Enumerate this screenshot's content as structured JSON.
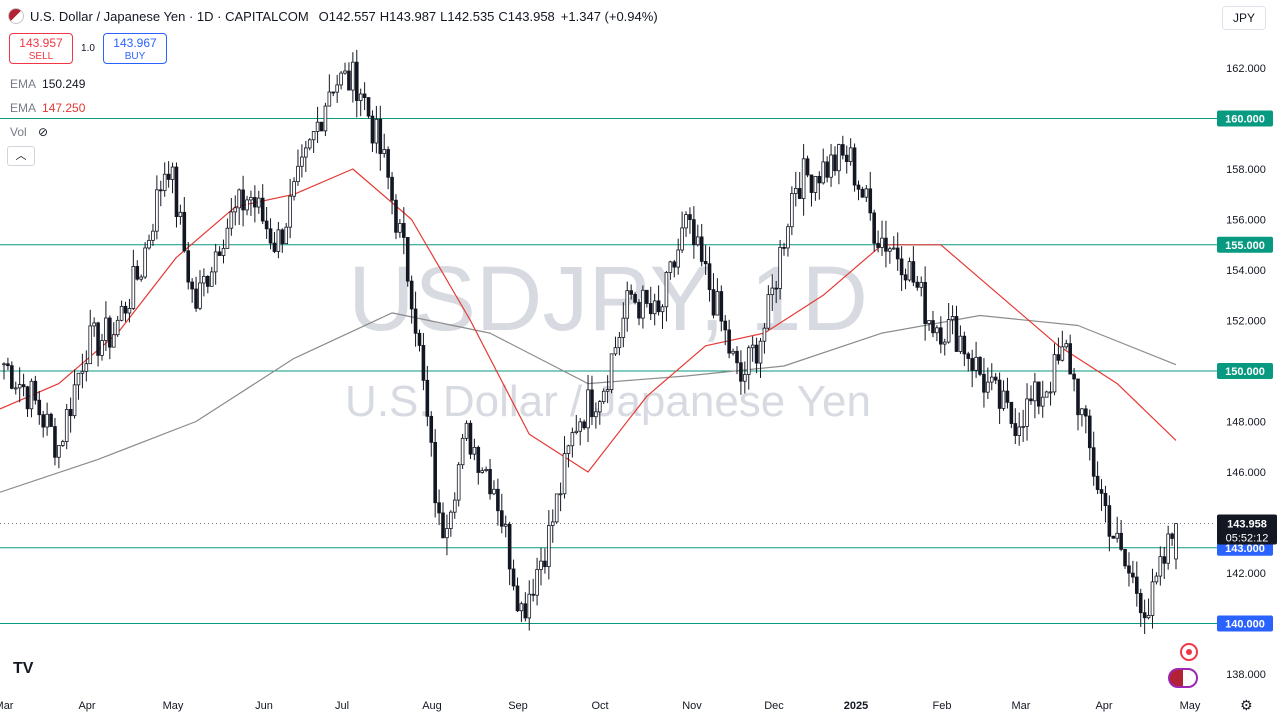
{
  "header": {
    "symbol": "U.S. Dollar / Japanese Yen · 1D · CAPITALCOM",
    "open_label": "O",
    "open": "142.557",
    "high_label": "H",
    "high": "143.987",
    "low_label": "L",
    "low": "142.535",
    "close_label": "C",
    "close": "143.958",
    "change": "+1.347 (+0.94%)"
  },
  "trade": {
    "sell_price": "143.957",
    "sell_label": "SELL",
    "spread": "1.0",
    "buy_price": "143.967",
    "buy_label": "BUY"
  },
  "indicators": [
    {
      "name": "EMA",
      "value": "150.249",
      "color": "#787b86"
    },
    {
      "name": "EMA",
      "value": "147.250",
      "color": "#e53935"
    },
    {
      "name": "Vol",
      "value": ""
    }
  ],
  "currency_button": "JPY",
  "watermark": {
    "line1": "USDJPY, 1D",
    "line2": "U.S. Dollar / Japanese Yen"
  },
  "colors": {
    "up": "#131722",
    "down": "#131722",
    "ema_fast": "#e53935",
    "ema_slow": "#8c8c8c",
    "hline": "#089981",
    "price_tag": "#2962ff",
    "last_tag": "#131722"
  },
  "icons": [
    "us-flag-icon",
    "eye-slash-icon",
    "chevron-up-icon",
    "tradingview-logo-icon",
    "gear-icon",
    "target-icon",
    "currency-flags-icon"
  ],
  "chart_data": {
    "type": "candlestick",
    "y_axis": {
      "ylim": [
        137.0,
        163.2
      ],
      "tick_labels": [
        "138.000",
        "140.000",
        "142.000",
        "144.000",
        "146.000",
        "148.000",
        "150.000",
        "152.000",
        "154.000",
        "156.000",
        "158.000",
        "160.000",
        "162.000"
      ]
    },
    "x_axis": {
      "tick_labels": [
        "Mar",
        "Apr",
        "May",
        "Jun",
        "Jul",
        "Aug",
        "Sep",
        "Oct",
        "Nov",
        "Dec",
        "2025",
        "Feb",
        "Mar",
        "Apr",
        "May"
      ]
    },
    "horizontal_levels": [
      {
        "value": 160.0,
        "label": "160.000"
      },
      {
        "value": 155.0,
        "label": "155.000"
      },
      {
        "value": 150.0,
        "label": "150.000"
      },
      {
        "value": 143.0,
        "label": "143.000"
      },
      {
        "value": 140.0,
        "label": "140.000"
      }
    ],
    "last_price": {
      "value": 143.958,
      "label": "143.958",
      "countdown": "05:52:12"
    },
    "price_path": [
      {
        "x": "Mar",
        "close": 150.3
      },
      {
        "x": "Mar",
        "close": 149.0
      },
      {
        "x": "Mar",
        "close": 147.0
      },
      {
        "x": "Apr",
        "close": 151.0
      },
      {
        "x": "Apr",
        "close": 151.5
      },
      {
        "x": "Apr",
        "close": 154.0
      },
      {
        "x": "May",
        "close": 158.5
      },
      {
        "x": "May",
        "close": 152.5
      },
      {
        "x": "May",
        "close": 155.5
      },
      {
        "x": "Jun",
        "close": 157.0
      },
      {
        "x": "Jun",
        "close": 155.0
      },
      {
        "x": "Jun",
        "close": 158.0
      },
      {
        "x": "Jul",
        "close": 161.5
      },
      {
        "x": "Jul",
        "close": 161.5
      },
      {
        "x": "Jul",
        "close": 158.0
      },
      {
        "x": "Aug",
        "close": 153.0
      },
      {
        "x": "Aug",
        "close": 143.5
      },
      {
        "x": "Aug",
        "close": 147.5
      },
      {
        "x": "Sep",
        "close": 145.5
      },
      {
        "x": "Sep",
        "close": 140.5
      },
      {
        "x": "Sep",
        "close": 143.5
      },
      {
        "x": "Oct",
        "close": 148.0
      },
      {
        "x": "Oct",
        "close": 149.5
      },
      {
        "x": "Oct",
        "close": 153.0
      },
      {
        "x": "Nov",
        "close": 152.0
      },
      {
        "x": "Nov",
        "close": 155.8
      },
      {
        "x": "Nov",
        "close": 153.0
      },
      {
        "x": "Dec",
        "close": 149.5
      },
      {
        "x": "Dec",
        "close": 152.0
      },
      {
        "x": "Dec",
        "close": 157.5
      },
      {
        "x": "2025",
        "close": 158.0
      },
      {
        "x": "2025",
        "close": 158.5
      },
      {
        "x": "2025",
        "close": 155.5
      },
      {
        "x": "Feb",
        "close": 154.5
      },
      {
        "x": "Feb",
        "close": 152.0
      },
      {
        "x": "Feb",
        "close": 151.5
      },
      {
        "x": "Mar",
        "close": 149.5
      },
      {
        "x": "Mar",
        "close": 148.0
      },
      {
        "x": "Mar",
        "close": 149.0
      },
      {
        "x": "Apr",
        "close": 150.8
      },
      {
        "x": "Apr",
        "close": 146.0
      },
      {
        "x": "Apr",
        "close": 142.5
      },
      {
        "x": "Apr",
        "close": 140.5
      },
      {
        "x": "Apr",
        "close": 143.958
      }
    ],
    "ema_fast_path": [
      148.5,
      149.5,
      151.5,
      154.5,
      156.5,
      157.0,
      158.0,
      156.0,
      152.0,
      147.5,
      146.0,
      149.0,
      151.0,
      151.5,
      153.0,
      155.0,
      155.0,
      153.0,
      151.0,
      149.5,
      147.25
    ],
    "ema_slow_path": [
      145.2,
      146.5,
      148.0,
      150.5,
      152.3,
      151.5,
      149.5,
      149.8,
      150.2,
      151.5,
      152.2,
      151.8,
      150.249
    ]
  }
}
